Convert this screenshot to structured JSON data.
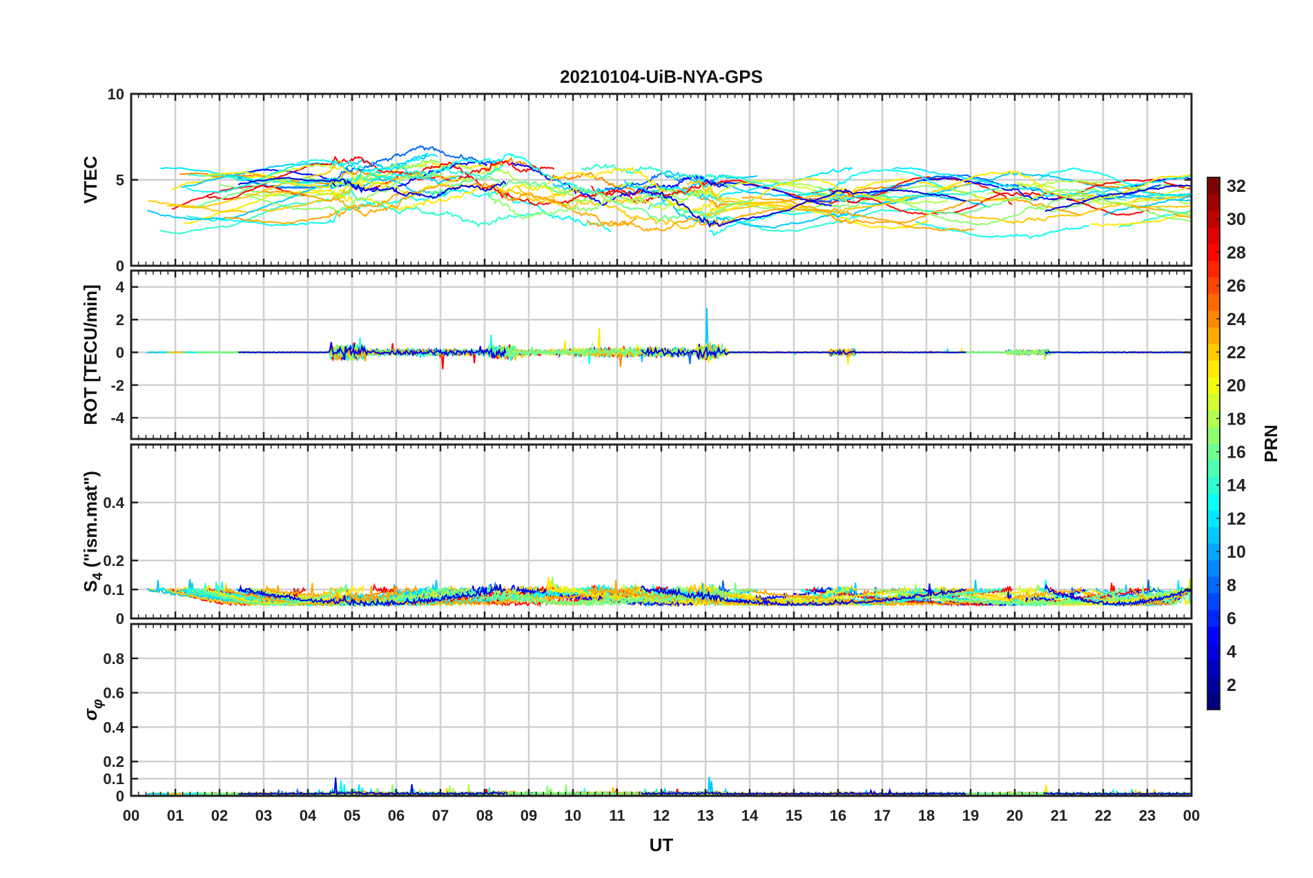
{
  "chart_data": [
    {
      "type": "line",
      "title": "20210104-UiB-NYA-GPS",
      "ylabel": "VTEC",
      "xlim": [
        0,
        24
      ],
      "ylim": [
        0,
        10
      ],
      "yticks": [
        0,
        5,
        10
      ],
      "grid": true
    },
    {
      "type": "line",
      "ylabel": "ROT [TECU/min]",
      "xlim": [
        0,
        24
      ],
      "ylim": [
        -5.3,
        5
      ],
      "yticks": [
        -4,
        -2,
        0,
        2,
        4
      ],
      "grid": true
    },
    {
      "type": "line",
      "ylabel": "S4 (\"ism.mat\")",
      "ylabel_main": "S",
      "ylabel_sub": "4",
      "ylabel_rest": " (\"ism.mat\")",
      "xlim": [
        0,
        24
      ],
      "ylim": [
        0,
        0.6
      ],
      "yticks": [
        0,
        0.1,
        0.2,
        0.4
      ],
      "grid": true
    },
    {
      "type": "line",
      "ylabel": "σφ",
      "ylabel_main": "σ",
      "ylabel_sub": "φ",
      "xlabel": "UT",
      "xlim": [
        0,
        24
      ],
      "ylim": [
        0,
        1
      ],
      "yticks": [
        0,
        0.1,
        0.2,
        0.4,
        0.6,
        0.8
      ],
      "grid": true
    }
  ],
  "x_tick_labels": [
    "00",
    "01",
    "02",
    "03",
    "04",
    "05",
    "06",
    "07",
    "08",
    "09",
    "10",
    "11",
    "12",
    "13",
    "14",
    "15",
    "16",
    "17",
    "18",
    "19",
    "20",
    "21",
    "22",
    "23",
    "00"
  ],
  "colorbar": {
    "label": "PRN",
    "range": [
      1,
      32
    ],
    "ticks": [
      2,
      4,
      6,
      8,
      10,
      12,
      14,
      16,
      18,
      20,
      22,
      24,
      26,
      28,
      30,
      32
    ],
    "colormap": "jet"
  },
  "colors": {
    "grid": "#d0d0d0",
    "axes": "#222222",
    "background": "#ffffff"
  }
}
